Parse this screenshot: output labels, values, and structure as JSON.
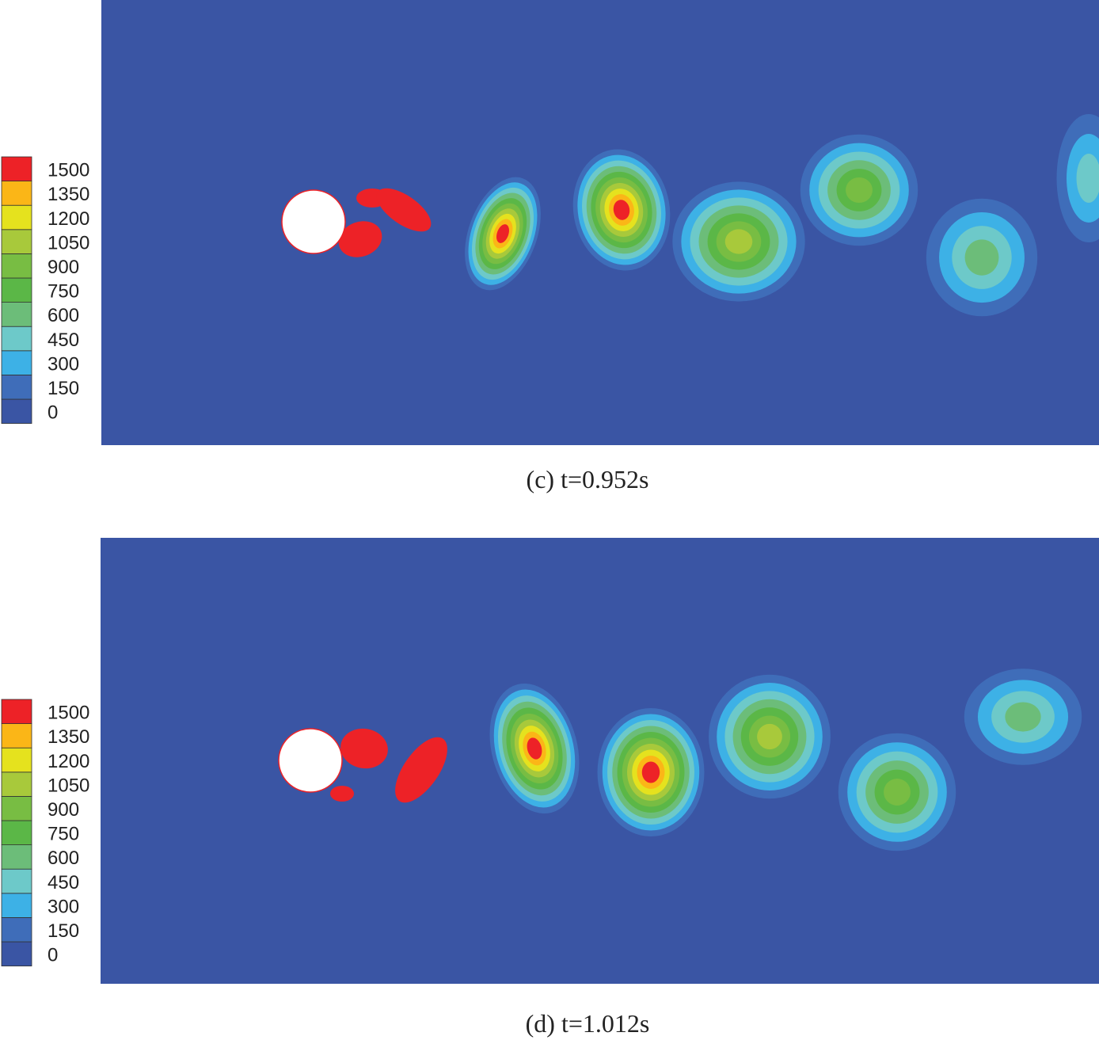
{
  "panels": [
    {
      "caption": "(c) t=0.952s",
      "colorbar": {
        "ticks": [
          0,
          150,
          300,
          450,
          600,
          750,
          900,
          1050,
          1200,
          1350,
          1500
        ],
        "colors": [
          "#3a55a4",
          "#3f6db9",
          "#3db1e6",
          "#6dc9c9",
          "#6cbd79",
          "#5bb747",
          "#78bd43",
          "#a8c93b",
          "#e5e21e",
          "#fbb617",
          "#ed2227"
        ]
      }
    },
    {
      "caption": "(d) t=1.012s",
      "colorbar": {
        "ticks": [
          0,
          150,
          300,
          450,
          600,
          750,
          900,
          1050,
          1200,
          1350,
          1500
        ],
        "colors": [
          "#3a55a4",
          "#3f6db9",
          "#3db1e6",
          "#6dc9c9",
          "#6cbd79",
          "#5bb747",
          "#78bd43",
          "#a8c93b",
          "#e5e21e",
          "#fbb617",
          "#ed2227"
        ]
      }
    }
  ]
}
